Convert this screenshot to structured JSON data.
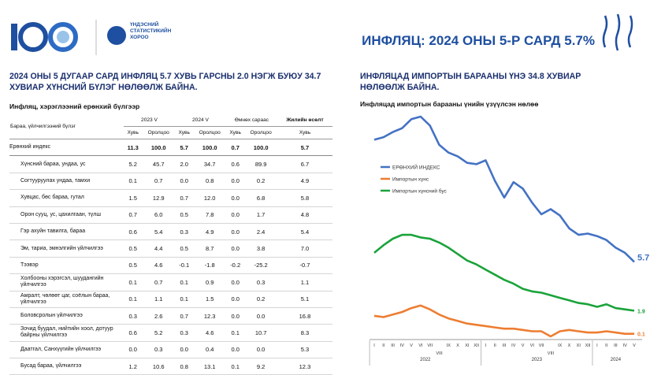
{
  "header": {
    "org": [
      "ҮНДЭСНИЙ",
      "СТАТИСТИКИЙН",
      "ХОРОО"
    ],
    "title": "ИНФЛЯЦ: 2024 ОНЫ 5-Р САРД 5.7%"
  },
  "left": {
    "heading": "2024 ОНЫ 5 ДУГААР САРД ИНФЛЯЦ 5.7 ХУВЬ ГАРСНЫ 2.0 НЭГЖ БУЮУ 34.7 ХУВИАР ХҮНСНИЙ БҮЛЭГ НӨЛӨӨЛЖ БАЙНА.",
    "table_title": "Инфляц, хэрэглээний ерөнхий бүлгээр",
    "table": {
      "group_header": "Бараа, үйлчилгээний бүлэг",
      "periods": [
        "2023 V",
        "2024 V",
        "Өмнөх сараас",
        "Жилийн өсөлт"
      ],
      "sub": [
        "Хувь",
        "Оролцоо",
        "Хувь",
        "Оролцоо",
        "Хувь",
        "Оролцоо",
        "Хувь"
      ],
      "rows": [
        [
          "Ерөнхий индекс",
          "11.3",
          "100.0",
          "5.7",
          "100.0",
          "0.7",
          "100.0",
          "5.7"
        ],
        [
          "Хүнсний бараа, ундаа, ус",
          "5.2",
          "45.7",
          "2.0",
          "34.7",
          "0.6",
          "89.9",
          "6.7"
        ],
        [
          "Согтууруулах ундаа, тамхи",
          "0.1",
          "0.7",
          "0.0",
          "0.8",
          "0.0",
          "0.2",
          "4.9"
        ],
        [
          "Хувцас, бөс бараа, гутал",
          "1.5",
          "12.9",
          "0.7",
          "12.0",
          "0.0",
          "6.8",
          "5.8"
        ],
        [
          "Орон сууц, ус, цахилгаан, түлш",
          "0.7",
          "6.0",
          "0.5",
          "7.8",
          "0.0",
          "1.7",
          "4.8"
        ],
        [
          "Гэр ахуйн тавилга, бараа",
          "0.6",
          "5.4",
          "0.3",
          "4.9",
          "0.0",
          "2.4",
          "5.4"
        ],
        [
          "Эм, тариа, эмнэлгийн үйлчилгээ",
          "0.5",
          "4.4",
          "0.5",
          "8.7",
          "0.0",
          "3.8",
          "7.0"
        ],
        [
          "Тээвэр",
          "0.5",
          "4.6",
          "-0.1",
          "-1.8",
          "-0.2",
          "-25.2",
          "-0.7"
        ],
        [
          "Холбооны хэрэгсэл, шуудангийн үйлчилгээ",
          "0.1",
          "0.7",
          "0.1",
          "0.9",
          "0.0",
          "0.3",
          "1.1"
        ],
        [
          "Амралт, чөлөөт цаг, соёлын бараа, үйлчилгээ",
          "0.1",
          "1.1",
          "0.1",
          "1.5",
          "0.0",
          "0.2",
          "5.1"
        ],
        [
          "Боловсролын үйлчилгээ",
          "0.3",
          "2.6",
          "0.7",
          "12.3",
          "0.0",
          "0.0",
          "16.8"
        ],
        [
          "Зочид буудал, нийтийн хоол, дотуур байрны үйлчилгээ",
          "0.6",
          "5.2",
          "0.3",
          "4.6",
          "0.1",
          "10.7",
          "8.3"
        ],
        [
          "Даатгал, Санхүүгийн үйлчилгээ",
          "0.0",
          "0.3",
          "0.0",
          "0.4",
          "0.0",
          "0.0",
          "5.3"
        ],
        [
          "Бусад бараа, үйлчилгээ",
          "1.2",
          "10.6",
          "0.8",
          "13.1",
          "0.1",
          "9.2",
          "12.3"
        ]
      ]
    }
  },
  "right": {
    "heading": "ИНФЛЯЦАД ИМПОРТЫН БАРААНЫ ҮНЭ 34.8 ХУВИАР НӨЛӨӨЛЖ БАЙНА."
  },
  "chart_data": {
    "type": "line",
    "title": "Инфляцад импортын барааны үнийн үзүүлсэн нөлөө",
    "categories": [
      "I",
      "II",
      "III",
      "IV",
      "V",
      "VI",
      "VII",
      "VIII",
      "IX",
      "X",
      "XI",
      "XII",
      "I",
      "II",
      "III",
      "IV",
      "V",
      "VI",
      "VII",
      "VIII",
      "IX",
      "X",
      "XI",
      "XII",
      "I",
      "II",
      "III",
      "IV",
      "V"
    ],
    "years": [
      "2022",
      "2023",
      "2024"
    ],
    "series": [
      {
        "name": "ЕРӨНХИЙ ИНДЕКС",
        "color": "#4472c4",
        "values": [
          15.2,
          15.4,
          15.8,
          16.1,
          16.8,
          17.0,
          16.3,
          14.8,
          14.2,
          13.9,
          13.4,
          13.3,
          13.6,
          12.0,
          10.7,
          11.9,
          11.4,
          10.3,
          9.4,
          9.8,
          9.3,
          8.3,
          7.8,
          7.9,
          7.7,
          7.4,
          6.8,
          6.4,
          5.7
        ]
      },
      {
        "name": "Импортын хүнс",
        "color": "#ed7d31",
        "values": [
          1.5,
          1.4,
          1.6,
          1.8,
          2.1,
          2.3,
          2.0,
          1.6,
          1.3,
          1.1,
          0.9,
          0.8,
          0.7,
          0.6,
          0.5,
          0.5,
          0.4,
          0.3,
          0.3,
          -0.1,
          0.3,
          0.4,
          0.3,
          0.2,
          0.2,
          0.3,
          0.2,
          0.1,
          0.1
        ]
      },
      {
        "name": "Импортын хүнсний бус",
        "color": "#1aa33a",
        "values": [
          6.4,
          7.0,
          7.5,
          7.8,
          7.8,
          7.6,
          7.5,
          7.2,
          6.8,
          6.3,
          5.8,
          5.5,
          5.1,
          4.7,
          4.3,
          4.0,
          3.6,
          3.4,
          3.3,
          3.1,
          2.9,
          2.7,
          2.5,
          2.4,
          2.2,
          2.4,
          2.1,
          2.0,
          1.9
        ]
      }
    ]
  }
}
